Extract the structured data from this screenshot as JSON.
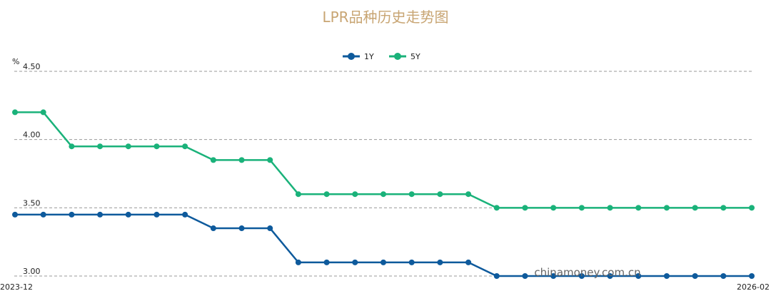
{
  "chart_data": {
    "type": "line",
    "title": "LPR品种历史走势图",
    "ylabel": "%",
    "ylim": [
      3.0,
      4.5
    ],
    "yticks": [
      "3.00",
      "3.50",
      "4.00",
      "4.50"
    ],
    "x_start_label": "2023-12",
    "x_end_label": "2026-02",
    "grid": true,
    "legend": "top-center",
    "x": [
      "2023-12",
      "2024-01",
      "2024-02",
      "2024-03",
      "2024-04",
      "2024-05",
      "2024-06",
      "2024-07",
      "2024-08",
      "2024-09",
      "2024-10",
      "2024-11",
      "2024-12",
      "2025-01",
      "2025-02",
      "2025-03",
      "2025-04",
      "2025-05",
      "2025-06",
      "2025-07",
      "2025-08",
      "2025-09",
      "2025-10",
      "2025-11",
      "2025-12",
      "2026-01",
      "2026-02"
    ],
    "series": [
      {
        "name": "1Y",
        "color": "#0e5a9c",
        "values": [
          3.45,
          3.45,
          3.45,
          3.45,
          3.45,
          3.45,
          3.45,
          3.35,
          3.35,
          3.35,
          3.1,
          3.1,
          3.1,
          3.1,
          3.1,
          3.1,
          3.1,
          3.0,
          3.0,
          3.0,
          3.0,
          3.0,
          3.0,
          3.0,
          3.0,
          3.0,
          3.0
        ]
      },
      {
        "name": "5Y",
        "color": "#1ab27a",
        "values": [
          4.2,
          4.2,
          3.95,
          3.95,
          3.95,
          3.95,
          3.95,
          3.85,
          3.85,
          3.85,
          3.6,
          3.6,
          3.6,
          3.6,
          3.6,
          3.6,
          3.6,
          3.5,
          3.5,
          3.5,
          3.5,
          3.5,
          3.5,
          3.5,
          3.5,
          3.5,
          3.5
        ]
      }
    ],
    "watermark": "chinamoney.com.cn"
  }
}
